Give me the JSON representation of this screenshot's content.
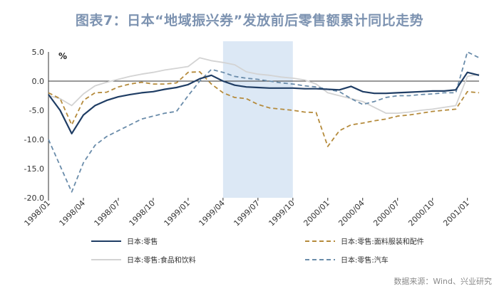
{
  "chart_data": {
    "type": "line",
    "title": "图表7：日本“地域振兴券”发放前后零售额累计同比走势",
    "unit_label": "%",
    "source": "数据来源：Wind、兴业研究",
    "ylim": [
      -20.0,
      5.0
    ],
    "y_ticks": [
      "5.0",
      "0.0",
      "-5.0",
      "-10.0",
      "-15.0",
      "-20.0"
    ],
    "y_tick_values": [
      5,
      0,
      -5,
      -10,
      -15,
      -20
    ],
    "x_ticks": [
      "1998/01",
      "1998/04",
      "1998/07",
      "1998/10",
      "1999/01",
      "1999/04",
      "1999/07",
      "1999/10",
      "2000/01",
      "2000/04",
      "2000/07",
      "2000/10",
      "2001/01"
    ],
    "x_tick_positions": [
      0,
      3,
      6,
      9,
      12,
      15,
      18,
      21,
      24,
      27,
      30,
      33,
      36
    ],
    "x_range": [
      0,
      37
    ],
    "shaded_period": [
      15,
      21
    ],
    "series": [
      {
        "name": "日本:零售",
        "color": "#1f3d64",
        "style": "solid",
        "values": [
          -2.3,
          -5.0,
          -9.0,
          -5.8,
          -4.2,
          -3.3,
          -2.7,
          -2.3,
          -2.0,
          -1.8,
          -1.4,
          -1.1,
          -0.6,
          0.4,
          1.0,
          0.0,
          -0.7,
          -1.0,
          -1.1,
          -1.2,
          -1.2,
          -1.2,
          -1.3,
          -1.3,
          -1.4,
          -1.5,
          -0.9,
          -1.8,
          -2.1,
          -2.1,
          -2.0,
          -1.9,
          -1.8,
          -1.7,
          -1.7,
          -1.5,
          1.5,
          1.0
        ]
      },
      {
        "name": "日本:零售:面料服装和配件",
        "color": "#b58b3c",
        "style": "dashed",
        "values": [
          -2.0,
          -3.0,
          -7.5,
          -3.3,
          -2.0,
          -1.9,
          -1.0,
          -0.5,
          -0.2,
          -0.5,
          -0.5,
          -0.3,
          1.5,
          1.6,
          -0.5,
          -2.0,
          -2.8,
          -3.0,
          -4.0,
          -4.6,
          -4.8,
          -5.0,
          -5.3,
          -5.4,
          -11.2,
          -8.5,
          -7.5,
          -7.2,
          -6.8,
          -6.5,
          -6.0,
          -5.8,
          -5.5,
          -5.2,
          -5.0,
          -4.8,
          -1.8,
          -2.0
        ]
      },
      {
        "name": "日本:零售:食品和饮料",
        "color": "#d3d3d3",
        "style": "solid",
        "values": [
          -2.5,
          -3.0,
          -4.2,
          -2.2,
          -0.8,
          -0.2,
          0.3,
          0.8,
          1.2,
          1.5,
          1.9,
          2.2,
          2.5,
          4.0,
          3.5,
          3.2,
          2.8,
          1.6,
          1.2,
          1.0,
          0.7,
          0.5,
          0.2,
          -0.5,
          -2.0,
          -2.5,
          -3.0,
          -3.5,
          -4.5,
          -5.5,
          -5.5,
          -5.3,
          -5.0,
          -4.8,
          -4.5,
          -4.2,
          0.8,
          1.2
        ]
      },
      {
        "name": "日本:零售:汽车",
        "color": "#6a8caa",
        "style": "dashed",
        "values": [
          -10.0,
          -14.5,
          -19.0,
          -14.0,
          -11.0,
          -9.5,
          -8.5,
          -7.5,
          -6.5,
          -6.0,
          -5.5,
          -5.2,
          -2.5,
          0.0,
          2.0,
          1.5,
          0.8,
          0.5,
          0.3,
          0.0,
          -0.3,
          -0.5,
          -0.8,
          -1.0,
          -1.4,
          -1.8,
          -3.0,
          -4.0,
          -3.5,
          -2.8,
          -2.5,
          -2.5,
          -2.3,
          -2.2,
          -2.0,
          -2.0,
          5.0,
          4.0
        ]
      }
    ]
  }
}
